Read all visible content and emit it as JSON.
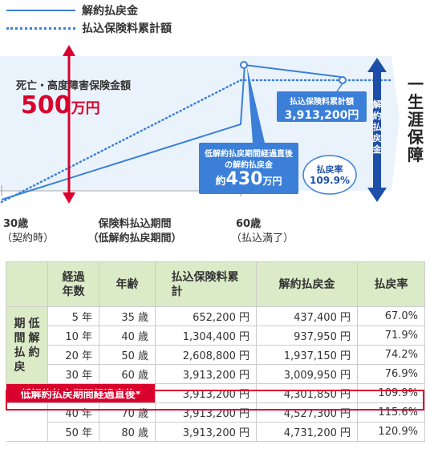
{
  "legend": {
    "solid_label": "解約払戻金",
    "dotted_label": "払込保険料累計額"
  },
  "colors": {
    "primary_blue": "#3b7fd9",
    "accent_red": "#d9002d",
    "table_header_green": "#dcebc7",
    "chart_background": "#eaf3fb"
  },
  "chart_data": {
    "type": "line",
    "x_unit": "歳",
    "x_points": [
      30,
      60
    ],
    "series": [
      {
        "name": "解約払戻金",
        "style": "solid"
      },
      {
        "name": "払込保険料累計額",
        "style": "dotted"
      }
    ],
    "annotations": {
      "death_benefit_label": "死亡・高度障害保険金額",
      "death_benefit_amount": "500",
      "death_benefit_unit": "万円",
      "cumulative_premium_label": "払込保険料累計額",
      "cumulative_premium_amount": "3,913,200円",
      "surrender_label_line1": "低解約払戻期間経過直後",
      "surrender_label_line2": "の解約払戻金",
      "surrender_prefix": "約",
      "surrender_amount": "430",
      "surrender_unit": "万円",
      "refund_rate_label": "払戻率",
      "refund_rate_value": "109.9%",
      "refund_arrow_label": "解約払戻金",
      "lifetime_label": "一生涯保障",
      "start_age_label": "30歳",
      "start_age_note": "（契約時）",
      "period_label_line1": "保険料払込期間",
      "period_label_line2": "（低解約払戻期間）",
      "end_age_label": "60歳",
      "end_age_note": "（払込満了）"
    }
  },
  "table": {
    "headers": {
      "years": "経過年数",
      "age": "年齢",
      "premium": "払込保険料累計",
      "surrender": "解約払戻金",
      "rate": "払戻率"
    },
    "side_label_col1": "低解約",
    "side_label_col2": "期間払戻",
    "highlight_label": "低解約払戻期間経過直後*",
    "rows": [
      {
        "years": "5 年",
        "age": "35 歳",
        "premium": "652,200 円",
        "surrender": "437,400 円",
        "rate": "67.0%"
      },
      {
        "years": "10 年",
        "age": "40 歳",
        "premium": "1,304,400 円",
        "surrender": "937,950 円",
        "rate": "71.9%"
      },
      {
        "years": "20 年",
        "age": "50 歳",
        "premium": "2,608,800 円",
        "surrender": "1,937,150 円",
        "rate": "74.2%"
      },
      {
        "years": "30 年",
        "age": "60 歳",
        "premium": "3,913,200 円",
        "surrender": "3,009,950 円",
        "rate": "76.9%"
      }
    ],
    "highlight_row": {
      "premium": "3,913,200 円",
      "surrender": "4,301,850 円",
      "rate": "109.9%"
    },
    "after_rows": [
      {
        "years": "40 年",
        "age": "70 歳",
        "premium": "3,913,200 円",
        "surrender": "4,527,300 円",
        "rate": "115.6%"
      },
      {
        "years": "50 年",
        "age": "80 歳",
        "premium": "3,913,200 円",
        "surrender": "4,731,200 円",
        "rate": "120.9%"
      }
    ]
  }
}
